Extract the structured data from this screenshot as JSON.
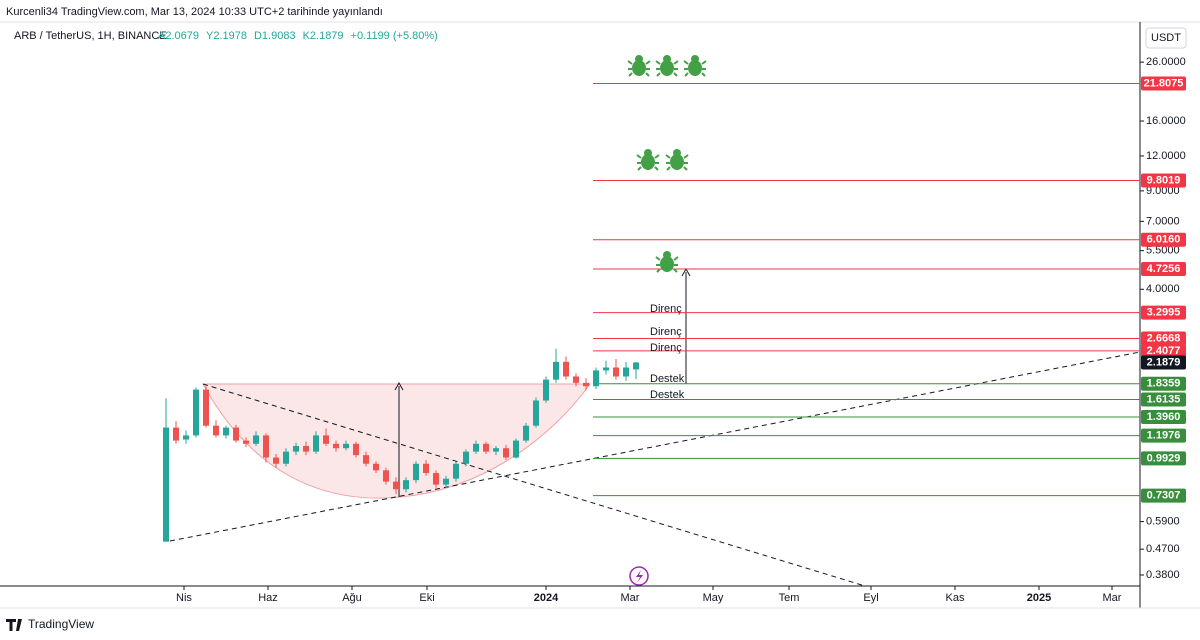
{
  "header": {
    "caption": "Kurcenli34 TradingView.com, Mar 13, 2024 10:33 UTC+2 tarihinde yayınlandı",
    "brand": "TradingView",
    "currency": "USDT"
  },
  "chart_data": {
    "type": "candlestick",
    "title": "ARB / TetherUS, 1H, BINANCE",
    "ohlc_legend": [
      "A2.0679",
      "Y2.1978",
      "D1.9083",
      "K2.1879",
      "+0.1199 (+5.80%)"
    ],
    "log_scale": true,
    "up_color": "#26a69a",
    "down_color": "#ef5350",
    "candles": [
      [
        0.5,
        1.63,
        0.5,
        1.28
      ],
      [
        1.28,
        1.35,
        1.12,
        1.15
      ],
      [
        1.16,
        1.25,
        1.12,
        1.2
      ],
      [
        1.2,
        1.78,
        1.18,
        1.75
      ],
      [
        1.75,
        1.8,
        1.28,
        1.3
      ],
      [
        1.3,
        1.36,
        1.18,
        1.2
      ],
      [
        1.2,
        1.3,
        1.17,
        1.28
      ],
      [
        1.28,
        1.31,
        1.13,
        1.15
      ],
      [
        1.15,
        1.18,
        1.09,
        1.12
      ],
      [
        1.12,
        1.24,
        1.1,
        1.2
      ],
      [
        1.2,
        1.22,
        0.96,
        1.0
      ],
      [
        1.0,
        1.03,
        0.92,
        0.95
      ],
      [
        0.95,
        1.08,
        0.93,
        1.05
      ],
      [
        1.05,
        1.13,
        1.02,
        1.1
      ],
      [
        1.1,
        1.14,
        1.02,
        1.05
      ],
      [
        1.05,
        1.24,
        1.03,
        1.2
      ],
      [
        1.2,
        1.27,
        1.1,
        1.12
      ],
      [
        1.12,
        1.15,
        1.05,
        1.08
      ],
      [
        1.08,
        1.15,
        1.06,
        1.12
      ],
      [
        1.12,
        1.14,
        1.0,
        1.02
      ],
      [
        1.02,
        1.05,
        0.93,
        0.95
      ],
      [
        0.95,
        0.97,
        0.88,
        0.9
      ],
      [
        0.9,
        0.92,
        0.8,
        0.82
      ],
      [
        0.82,
        0.85,
        0.74,
        0.77
      ],
      [
        0.77,
        0.85,
        0.75,
        0.83
      ],
      [
        0.83,
        0.97,
        0.81,
        0.95
      ],
      [
        0.95,
        0.98,
        0.86,
        0.88
      ],
      [
        0.88,
        0.9,
        0.78,
        0.8
      ],
      [
        0.8,
        0.86,
        0.78,
        0.84
      ],
      [
        0.84,
        0.97,
        0.82,
        0.95
      ],
      [
        0.95,
        1.07,
        0.93,
        1.05
      ],
      [
        1.05,
        1.15,
        1.03,
        1.12
      ],
      [
        1.12,
        1.14,
        1.03,
        1.05
      ],
      [
        1.05,
        1.1,
        1.02,
        1.08
      ],
      [
        1.08,
        1.11,
        0.98,
        1.0
      ],
      [
        1.0,
        1.17,
        0.99,
        1.15
      ],
      [
        1.15,
        1.33,
        1.13,
        1.3
      ],
      [
        1.3,
        1.64,
        1.28,
        1.6
      ],
      [
        1.6,
        1.95,
        1.57,
        1.9
      ],
      [
        1.9,
        2.45,
        1.85,
        2.2
      ],
      [
        2.2,
        2.3,
        1.9,
        1.95
      ],
      [
        1.95,
        2.0,
        1.8,
        1.85
      ],
      [
        1.85,
        1.92,
        1.74,
        1.8
      ],
      [
        1.8,
        2.1,
        1.76,
        2.05
      ],
      [
        2.05,
        2.22,
        1.98,
        2.1
      ],
      [
        2.1,
        2.25,
        1.9,
        1.95
      ],
      [
        1.95,
        2.2,
        1.88,
        2.1
      ],
      [
        2.0679,
        2.1978,
        1.9083,
        2.1879
      ]
    ],
    "xlim": [
      -16.6,
      97.4
    ],
    "xticks": [
      {
        "value": 1.8,
        "label": "Nis"
      },
      {
        "value": 10.2,
        "label": "Haz"
      },
      {
        "value": 18.6,
        "label": "Ağu"
      },
      {
        "value": 26.1,
        "label": "Eki"
      },
      {
        "value": 38.0,
        "label": "2024"
      },
      {
        "value": 46.4,
        "label": "Mar"
      },
      {
        "value": 54.7,
        "label": "May"
      },
      {
        "value": 62.3,
        "label": "Tem"
      },
      {
        "value": 70.5,
        "label": "Eyl"
      },
      {
        "value": 78.9,
        "label": "Kas"
      },
      {
        "value": 87.3,
        "label": "2025"
      },
      {
        "value": 94.6,
        "label": "Mar"
      }
    ],
    "ylim": [
      0.347,
      35.3
    ],
    "yticks": [
      {
        "value": 26,
        "label": "26.0000"
      },
      {
        "value": 16,
        "label": "16.0000"
      },
      {
        "value": 12,
        "label": "12.0000"
      },
      {
        "value": 9,
        "label": "9.0000"
      },
      {
        "value": 7,
        "label": "7.0000"
      },
      {
        "value": 5.5,
        "label": "5.5000"
      },
      {
        "value": 4,
        "label": "4.0000"
      },
      {
        "value": 0.59,
        "label": "0.5900"
      },
      {
        "value": 0.47,
        "label": "0.4700"
      },
      {
        "value": 0.38,
        "label": "0.3800"
      }
    ],
    "levels": {
      "values": [
        21.8075,
        9.8019,
        6.016,
        4.7256,
        3.2995,
        2.6668,
        2.4077,
        1.8359,
        1.6135,
        1.396,
        1.1976,
        0.9929,
        0.7307
      ],
      "value_labels": [
        "21.8075",
        "9.8019",
        "6.0160",
        "4.7256",
        "3.2995",
        "2.6668",
        "2.4077",
        "1.8359",
        "1.6135",
        "1.3960",
        "1.1976",
        "0.9929",
        "0.7307"
      ],
      "colors": [
        "#f23645",
        "#f23645",
        "#f23645",
        "#f23645",
        "#f23645",
        "#f23645",
        "#f23645",
        "#388e3c",
        "#388e3c",
        "#388e3c",
        "#388e3c",
        "#388e3c",
        "#388e3c"
      ]
    },
    "annotations": [
      "Direnç",
      "Direnç",
      "Direnç",
      "Destek",
      "Destek"
    ]
  }
}
